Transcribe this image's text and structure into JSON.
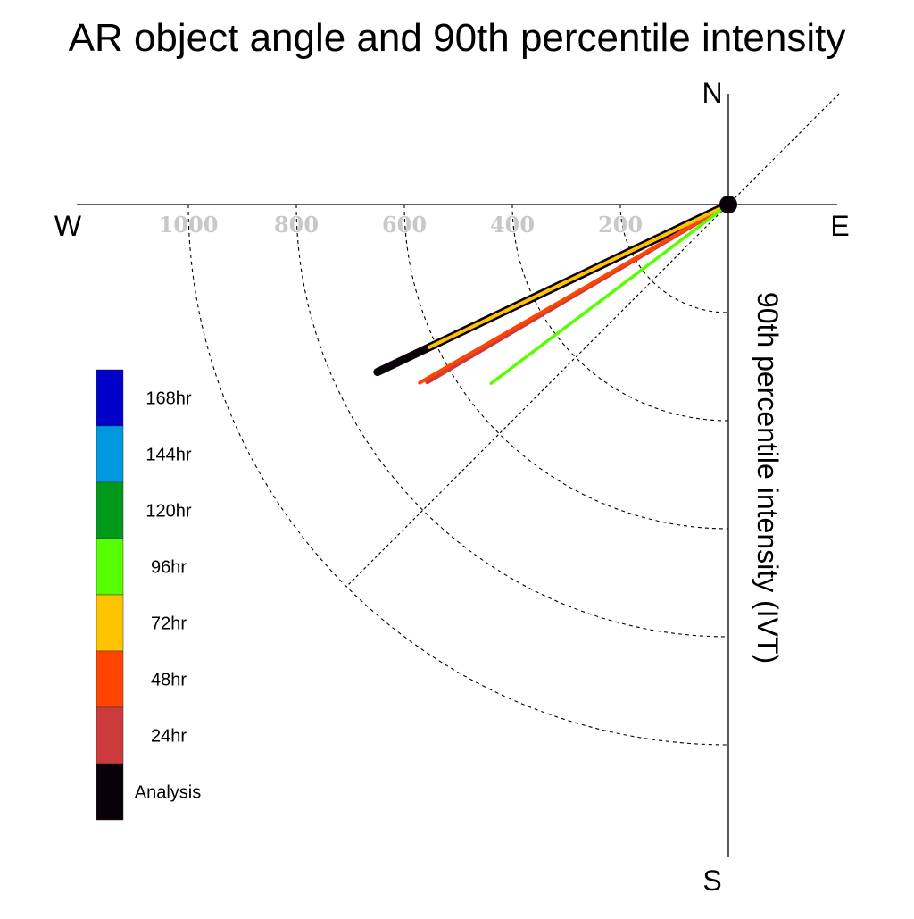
{
  "chart_data": {
    "type": "polar-vector",
    "title": "AR object angle and 90th percentile intensity",
    "ylabel": "90th percentile intensity (IVT)",
    "compass": {
      "north": "N",
      "south": "S",
      "east": "E",
      "west": "W"
    },
    "radial_ticks": [
      {
        "value": 200,
        "label": "200"
      },
      {
        "value": 400,
        "label": "400"
      },
      {
        "value": 600,
        "label": "600"
      },
      {
        "value": 800,
        "label": "800"
      },
      {
        "value": 1000,
        "label": "1000"
      }
    ],
    "series": [
      {
        "name": "Analysis",
        "color": "#0a0008",
        "angle_deg_from_west": 25.5,
        "intensity": 720
      },
      {
        "name": "24hr",
        "color": "#cc3b3b",
        "angle_deg_from_west": 30.5,
        "intensity": 647
      },
      {
        "name": "48hr",
        "color": "#ff4500",
        "angle_deg_from_west": 30.0,
        "intensity": 660
      },
      {
        "name": "72hr",
        "color": "#ffc400",
        "angle_deg_from_west": 25.5,
        "intensity": 614
      },
      {
        "name": "96hr",
        "color": "#55ff00",
        "angle_deg_from_west": 37.0,
        "intensity": 550
      }
    ],
    "legend": [
      {
        "label": "168hr",
        "color": "#0000c8"
      },
      {
        "label": "144hr",
        "color": "#0099e0"
      },
      {
        "label": "120hr",
        "color": "#00991a"
      },
      {
        "label": "96hr",
        "color": "#55ff00"
      },
      {
        "label": "72hr",
        "color": "#ffc400"
      },
      {
        "label": "48hr",
        "color": "#ff4500"
      },
      {
        "label": "24hr",
        "color": "#cc3b3b"
      },
      {
        "label": "Analysis",
        "color": "#0a0008"
      }
    ],
    "legend_position": "bottom-left"
  }
}
